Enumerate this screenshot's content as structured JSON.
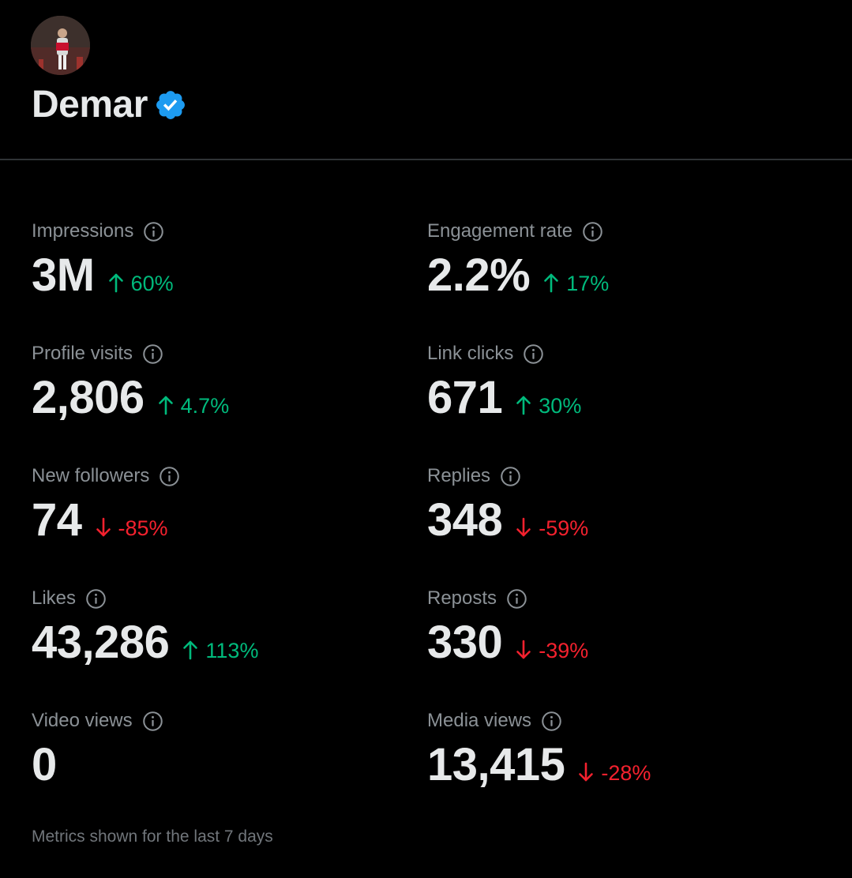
{
  "profile": {
    "name": "Demar",
    "verified": true,
    "verified_color": "#1d9bf0"
  },
  "metrics": [
    {
      "label": "Impressions",
      "value": "3M",
      "change": "60%",
      "direction": "up",
      "icon": "info-icon"
    },
    {
      "label": "Engagement rate",
      "value": "2.2%",
      "change": "17%",
      "direction": "up",
      "icon": "info-icon"
    },
    {
      "label": "Profile visits",
      "value": "2,806",
      "change": "4.7%",
      "direction": "up",
      "icon": "info-icon"
    },
    {
      "label": "Link clicks",
      "value": "671",
      "change": "30%",
      "direction": "up",
      "icon": "info-icon"
    },
    {
      "label": "New followers",
      "value": "74",
      "change": "-85%",
      "direction": "down",
      "icon": "info-icon"
    },
    {
      "label": "Replies",
      "value": "348",
      "change": "-59%",
      "direction": "down",
      "icon": "info-icon"
    },
    {
      "label": "Likes",
      "value": "43,286",
      "change": "113%",
      "direction": "up",
      "icon": "info-icon"
    },
    {
      "label": "Reposts",
      "value": "330",
      "change": "-39%",
      "direction": "down",
      "icon": "info-icon"
    },
    {
      "label": "Video views",
      "value": "0",
      "change": "",
      "direction": "none",
      "icon": "info-icon"
    },
    {
      "label": "Media views",
      "value": "13,415",
      "change": "-28%",
      "direction": "down",
      "icon": "info-icon"
    }
  ],
  "colors": {
    "background": "#000000",
    "up": "#00ba7c",
    "down": "#f4212e",
    "label": "#8b9196",
    "value": "#e7e9ea"
  },
  "footer": {
    "note": "Metrics shown for the last 7 days"
  }
}
